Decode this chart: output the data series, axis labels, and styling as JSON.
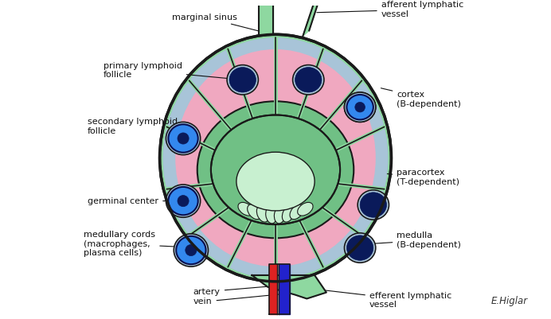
{
  "background_color": "#ffffff",
  "figsize": [
    6.92,
    4.01
  ],
  "dpi": 100,
  "colors": {
    "capsule": "#8ed8a0",
    "cortex": "#a8c4d8",
    "paracortex": "#f0a8c0",
    "medulla_dark": "#70c085",
    "medulla_light": "#c8f0d0",
    "follicle_bg": "#a8c4d8",
    "follicle_dark": "#0a1a5a",
    "follicle_blue": "#3388ee",
    "outline": "#1a1a1a",
    "artery": "#dd2222",
    "vein": "#2222cc",
    "white": "#ffffff"
  },
  "labels": {
    "marginal_sinus": "marginal sinus",
    "afferent": "afferent lymphatic\nvessel",
    "primary_follicle": "primary lymphoid\nfollicle",
    "secondary_follicle": "secondary lymphoid\nfollicle",
    "germinal_center": "germinal center",
    "medullary_cords": "medullary cords\n(macrophages,\nplasma cells)",
    "cortex": "cortex\n(B-dependent)",
    "paracortex": "paracortex\n(T-dependent)",
    "medulla": "medulla\n(B-dependent)",
    "artery": "artery",
    "vein": "vein",
    "efferent": "efferent lymphatic\nvessel",
    "signature": "E.Higlar"
  }
}
